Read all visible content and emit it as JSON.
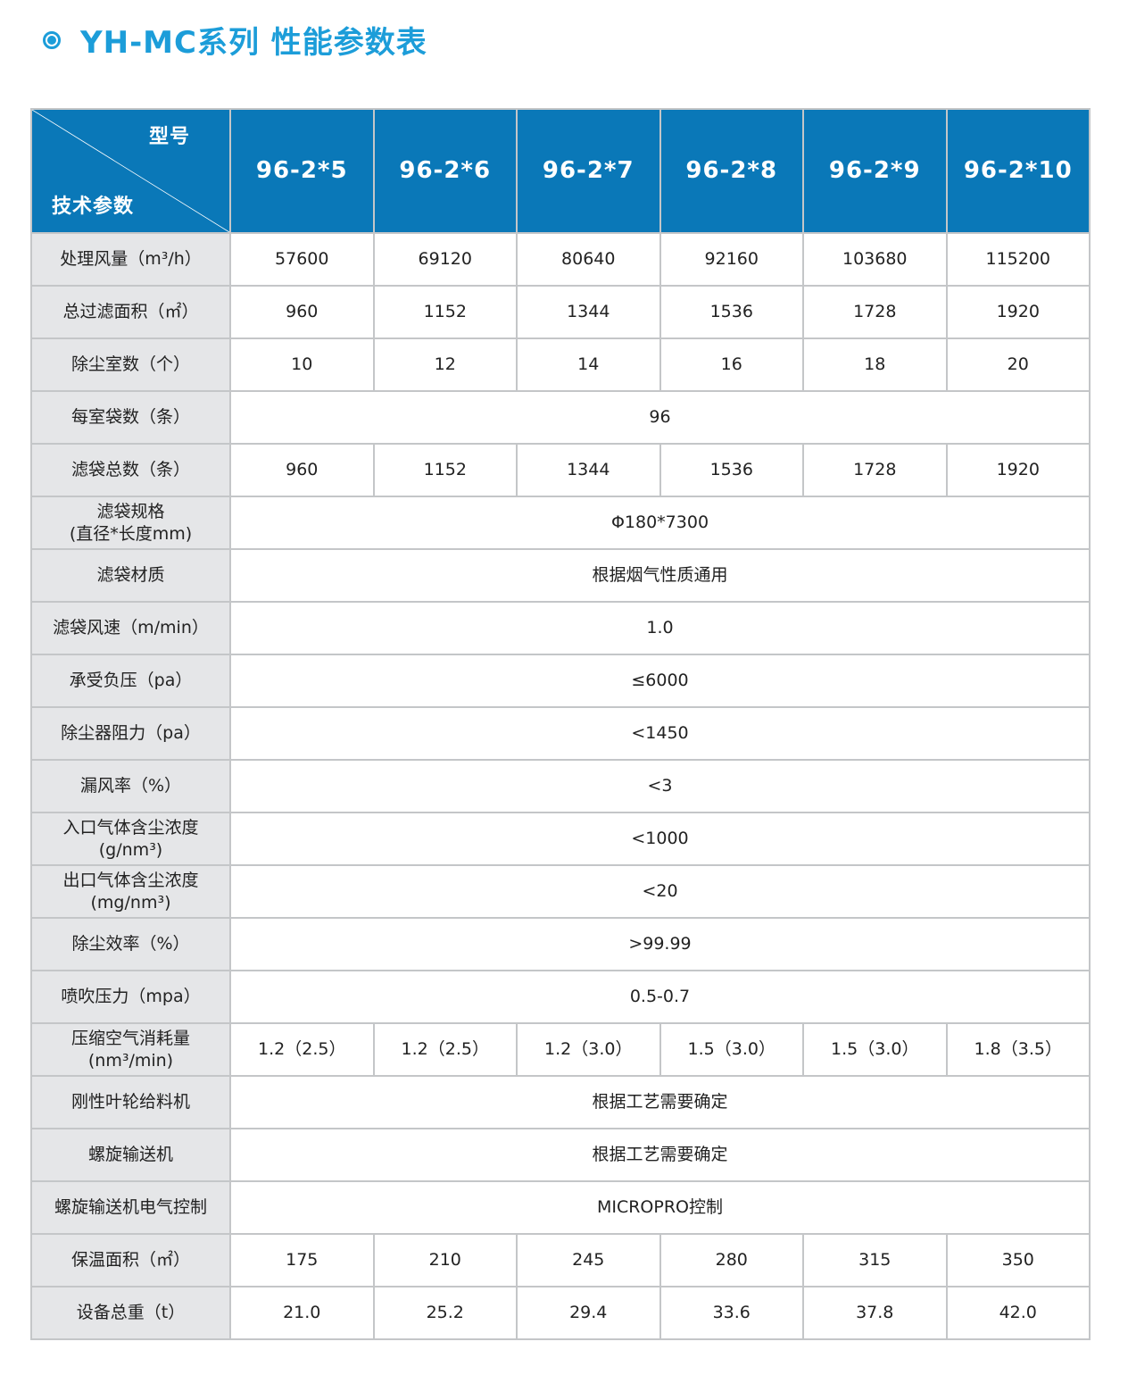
{
  "title": "YH-MC系列 性能参数表",
  "header": {
    "corner_top": "型号",
    "corner_bottom": "技术参数",
    "models": [
      "96-2*5",
      "96-2*6",
      "96-2*7",
      "96-2*8",
      "96-2*9",
      "96-2*10"
    ]
  },
  "rows": [
    {
      "label": "处理风量（m³/h）",
      "values": [
        "57600",
        "69120",
        "80640",
        "92160",
        "103680",
        "115200"
      ]
    },
    {
      "label": "总过滤面积（㎡）",
      "values": [
        "960",
        "1152",
        "1344",
        "1536",
        "1728",
        "1920"
      ]
    },
    {
      "label": "除尘室数（个）",
      "values": [
        "10",
        "12",
        "14",
        "16",
        "18",
        "20"
      ]
    },
    {
      "label": "每室袋数（条）",
      "span": "96"
    },
    {
      "label": "滤袋总数（条）",
      "values": [
        "960",
        "1152",
        "1344",
        "1536",
        "1728",
        "1920"
      ]
    },
    {
      "label": "滤袋规格",
      "label2": "(直径*长度mm)",
      "span": "Φ180*7300"
    },
    {
      "label": "滤袋材质",
      "span": "根据烟气性质通用"
    },
    {
      "label": "滤袋风速（m/min）",
      "span": "1.0"
    },
    {
      "label": "承受负压（pa）",
      "span": "≤6000"
    },
    {
      "label": "除尘器阻力（pa）",
      "span": "<1450"
    },
    {
      "label": "漏风率（%）",
      "span": "<3"
    },
    {
      "label": "入口气体含尘浓度",
      "label2": "(g/nm³)",
      "span": "<1000"
    },
    {
      "label": "出口气体含尘浓度",
      "label2": "(mg/nm³)",
      "span": "<20"
    },
    {
      "label": "除尘效率（%）",
      "span": ">99.99"
    },
    {
      "label": "喷吹压力（mpa）",
      "span": "0.5-0.7"
    },
    {
      "label": "压缩空气消耗量",
      "label2": "(nm³/min)",
      "values": [
        "1.2（2.5）",
        "1.2（2.5）",
        "1.2（3.0）",
        "1.5（3.0）",
        "1.5（3.0）",
        "1.8（3.5）"
      ]
    },
    {
      "label": "刚性叶轮给料机",
      "span": "根据工艺需要确定"
    },
    {
      "label": "螺旋输送机",
      "span": "根据工艺需要确定"
    },
    {
      "label": "螺旋输送机电气控制",
      "span": "MICROPRO控制"
    },
    {
      "label": "保温面积（㎡）",
      "values": [
        "175",
        "210",
        "245",
        "280",
        "315",
        "350"
      ]
    },
    {
      "label": "设备总重（t）",
      "values": [
        "21.0",
        "25.2",
        "29.4",
        "33.6",
        "37.8",
        "42.0"
      ]
    }
  ],
  "colors": {
    "title": "#1c9dd9",
    "header_bg": "#0a78b8",
    "label_bg": "#e5e6e8"
  }
}
